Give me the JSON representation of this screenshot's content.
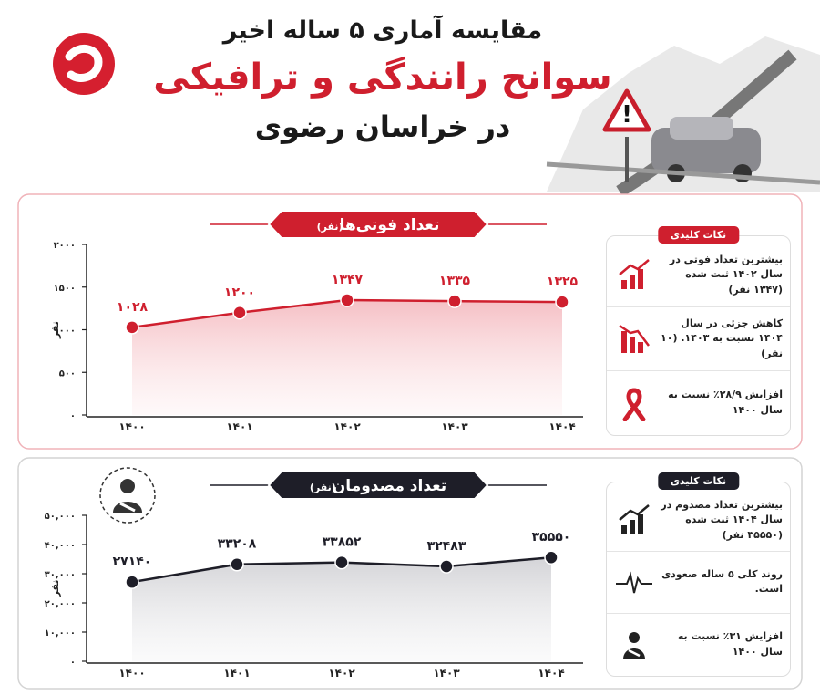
{
  "header": {
    "line1": "مقایسه آماری ۵ ساله اخیر",
    "line2": "سوانح رانندگی و ترافیکی",
    "line3": "در خراسان رضوی"
  },
  "chart_data": [
    {
      "type": "line",
      "title": "تعداد فوتی‌ها",
      "title_unit": "(نفر)",
      "ylabel": "نفر",
      "categories": [
        "۱۴۰۰",
        "۱۴۰۱",
        "۱۴۰۲",
        "۱۴۰۳",
        "۱۴۰۴"
      ],
      "values": [
        1028,
        1200,
        1347,
        1335,
        1325
      ],
      "value_labels": [
        "۱۰۲۸",
        "۱۲۰۰",
        "۱۳۴۷",
        "۱۳۳۵",
        "۱۳۲۵"
      ],
      "color": "#cf1f2e",
      "area_color": "#f6c9cd",
      "ylim": [
        0,
        2000
      ],
      "yticks": [
        {
          "value": 0,
          "label": "۰"
        },
        {
          "value": 500,
          "label": "۵۰۰"
        },
        {
          "value": 1000,
          "label": "۱۰۰۰"
        },
        {
          "value": 1500,
          "label": "۱۵۰۰"
        },
        {
          "value": 2000,
          "label": "۲۰۰۰"
        }
      ],
      "grid": false,
      "key_points": {
        "title": "نکات کلیدی",
        "items": [
          "بیشترین تعداد فوتی در سال ۱۴۰۲ ثبت شده (۱۳۴۷ نفر)",
          "کاهش جزئی در سال ۱۴۰۴ نسبت به ۱۴۰۳. (۱۰ نفر)",
          "افزایش ۲۸/۹٪ نسبت به سال ۱۴۰۰"
        ]
      }
    },
    {
      "type": "line",
      "title": "تعداد مصدومان",
      "title_unit": "(نفر)",
      "ylabel": "نفر",
      "categories": [
        "۱۴۰۰",
        "۱۴۰۱",
        "۱۴۰۲",
        "۱۴۰۳",
        "۱۴۰۴"
      ],
      "values": [
        27140,
        33208,
        33852,
        32483,
        35550
      ],
      "value_labels": [
        "۲۷۱۴۰",
        "۳۳۲۰۸",
        "۳۳۸۵۲",
        "۳۲۴۸۳",
        "۳۵۵۵۰"
      ],
      "color": "#1e1e28",
      "area_color": "#d9d9dc",
      "ylim": [
        0,
        50000
      ],
      "yticks": [
        {
          "value": 0,
          "label": "۰"
        },
        {
          "value": 10000,
          "label": "۱۰,۰۰۰"
        },
        {
          "value": 20000,
          "label": "۲۰,۰۰۰"
        },
        {
          "value": 30000,
          "label": "۳۰,۰۰۰"
        },
        {
          "value": 40000,
          "label": "۴۰,۰۰۰"
        },
        {
          "value": 50000,
          "label": "۵۰,۰۰۰"
        }
      ],
      "grid": false,
      "key_points": {
        "title": "نکات کلیدی",
        "items": [
          "بیشترین تعداد مصدوم در سال ۱۴۰۴ ثبت شده (۳۵۵۵۰ نفر)",
          "روند کلی ۵ ساله صعودی است.",
          "افزایش ۳۱٪ نسبت به سال ۱۴۰۰"
        ]
      }
    }
  ]
}
